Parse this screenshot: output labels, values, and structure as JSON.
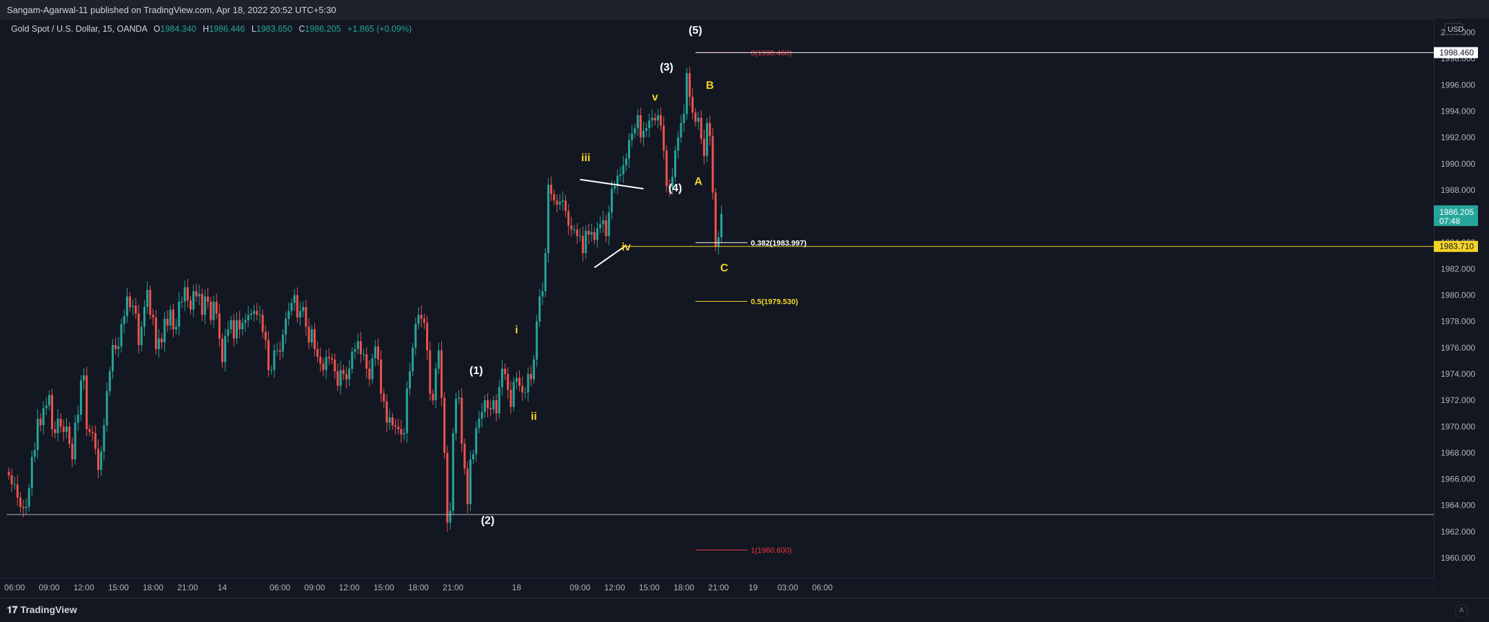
{
  "header": {
    "published": "Sangam-Agarwal-11 published on TradingView.com, Apr 18, 2022 20:52 UTC+5:30"
  },
  "legend": {
    "symbol": "Gold Spot / U.S. Dollar, 15, OANDA",
    "open_label": "O",
    "open": "1984.340",
    "high_label": "H",
    "high": "1986.446",
    "low_label": "L",
    "low": "1983.650",
    "close_label": "C",
    "close": "1986.205",
    "change": "+1.865 (+0.09%)"
  },
  "footer": {
    "brand": "TradingView",
    "auto_label": "A"
  },
  "colors": {
    "up": "#26a69a",
    "down": "#ef5350",
    "background": "#131722",
    "wave_white": "#ffffff",
    "wave_yellow": "#f5d426",
    "fib_red": "#f23645",
    "fib_yellow": "#f5d426"
  },
  "chart_data": {
    "type": "candlestick",
    "currency": "USD",
    "ylim": [
      1958.6,
      2000.2
    ],
    "y_ticks": [
      "1960.000",
      "1962.000",
      "1964.000",
      "1966.000",
      "1968.000",
      "1970.000",
      "1972.000",
      "1974.000",
      "1976.000",
      "1978.000",
      "1980.000",
      "1982.000",
      "1984.000",
      "1986.000",
      "1988.000",
      "1990.000",
      "1992.000",
      "1994.000",
      "1996.000",
      "1998.000",
      "2000.000"
    ],
    "x_ticks": [
      {
        "label": "06:00",
        "i": 2
      },
      {
        "label": "09:00",
        "i": 14
      },
      {
        "label": "12:00",
        "i": 26
      },
      {
        "label": "15:00",
        "i": 38
      },
      {
        "label": "18:00",
        "i": 50
      },
      {
        "label": "21:00",
        "i": 62
      },
      {
        "label": "14",
        "i": 74
      },
      {
        "label": "06:00",
        "i": 94
      },
      {
        "label": "09:00",
        "i": 106
      },
      {
        "label": "12:00",
        "i": 118
      },
      {
        "label": "15:00",
        "i": 130
      },
      {
        "label": "18:00",
        "i": 142
      },
      {
        "label": "21:00",
        "i": 154
      },
      {
        "label": "18",
        "i": 176
      },
      {
        "label": "09:00",
        "i": 198
      },
      {
        "label": "12:00",
        "i": 210
      },
      {
        "label": "15:00",
        "i": 222
      },
      {
        "label": "18:00",
        "i": 234
      },
      {
        "label": "21:00",
        "i": 246
      },
      {
        "label": "19",
        "i": 258
      },
      {
        "label": "03:00",
        "i": 270
      },
      {
        "label": "06:00",
        "i": 282
      }
    ],
    "candles_closes": [
      1966.3,
      1965.6,
      1965.6,
      1964.6,
      1963.9,
      1963.8,
      1963.9,
      1965.3,
      1967.7,
      1968.2,
      1970.6,
      1970.1,
      1971.4,
      1971.6,
      1972.4,
      1969.8,
      1969.5,
      1970.6,
      1970.0,
      1969.6,
      1970.0,
      1968.7,
      1967.5,
      1970.3,
      1970.9,
      1973.5,
      1973.9,
      1969.8,
      1969.6,
      1969.5,
      1968.3,
      1966.7,
      1968.1,
      1970.1,
      1972.7,
      1974.2,
      1976.2,
      1975.9,
      1976.1,
      1977.8,
      1978.4,
      1979.9,
      1979.1,
      1979.2,
      1978.6,
      1976.2,
      1977.6,
      1979.1,
      1980.4,
      1978.5,
      1978.3,
      1975.9,
      1976.7,
      1976.4,
      1978.2,
      1977.7,
      1978.9,
      1977.4,
      1977.6,
      1979.5,
      1979.5,
      1980.6,
      1979.6,
      1978.9,
      1980.3,
      1979.9,
      1980.1,
      1978.5,
      1979.9,
      1979.5,
      1978.1,
      1979.5,
      1978.6,
      1976.7,
      1974.9,
      1976.9,
      1977.4,
      1978.1,
      1976.7,
      1978.1,
      1977.4,
      1977.9,
      1978.1,
      1978.5,
      1978.6,
      1978.8,
      1978.5,
      1978.5,
      1977.2,
      1976.6,
      1974.3,
      1974.3,
      1975.8,
      1975.8,
      1975.7,
      1977.0,
      1978.2,
      1978.8,
      1979.4,
      1980.0,
      1978.3,
      1978.8,
      1979.1,
      1977.6,
      1976.4,
      1977.4,
      1975.9,
      1975.3,
      1974.8,
      1974.3,
      1975.3,
      1975.2,
      1975.1,
      1974.2,
      1973.1,
      1974.3,
      1974.0,
      1973.6,
      1974.4,
      1975.7,
      1975.9,
      1976.5,
      1975.5,
      1975.5,
      1974.4,
      1973.6,
      1975.2,
      1976.1,
      1975.1,
      1972.5,
      1971.9,
      1970.3,
      1970.7,
      1970.1,
      1970.0,
      1969.8,
      1969.4,
      1969.5,
      1972.9,
      1974.2,
      1976.0,
      1977.8,
      1978.5,
      1978.2,
      1977.9,
      1975.8,
      1972.5,
      1972.0,
      1974.4,
      1975.8,
      1972.2,
      1968.0,
      1962.7,
      1963.6,
      1969.5,
      1972.1,
      1972.2,
      1968.7,
      1966.8,
      1964.1,
      1967.5,
      1967.9,
      1969.9,
      1970.6,
      1971.1,
      1972.0,
      1971.4,
      1971.3,
      1972.0,
      1971.0,
      1973.0,
      1974.4,
      1974.0,
      1972.8,
      1971.5,
      1973.4,
      1973.7,
      1973.1,
      1972.6,
      1972.6,
      1974.0,
      1973.6,
      1975.1,
      1978.0,
      1979.9,
      1980.3,
      1983.2,
      1988.4,
      1987.7,
      1987.2,
      1986.9,
      1987.1,
      1987.2,
      1986.4,
      1985.3,
      1985.0,
      1985.0,
      1984.5,
      1984.5,
      1983.2,
      1984.9,
      1984.6,
      1984.8,
      1984.2,
      1985.1,
      1985.4,
      1985.7,
      1984.5,
      1986.3,
      1988.1,
      1988.3,
      1989.1,
      1989.2,
      1989.9,
      1990.4,
      1991.8,
      1992.3,
      1992.7,
      1993.7,
      1992.0,
      1992.5,
      1992.7,
      1993.3,
      1993.5,
      1993.3,
      1993.7,
      1992.9,
      1991.0,
      1988.3,
      1988.2,
      1989.0,
      1991.0,
      1992.0,
      1993.1,
      1993.8,
      1996.9,
      1995.1,
      1993.9,
      1993.2,
      1993.5,
      1991.9,
      1990.6,
      1993.1,
      1992.1,
      1987.8,
      1983.7,
      1984.4,
      1986.2
    ],
    "wave_labels": [
      {
        "text": "(1)",
        "color": "white",
        "i": 162,
        "y": 1974.0
      },
      {
        "text": "(2)",
        "color": "white",
        "i": 166,
        "y": 1962.6
      },
      {
        "text": "(3)",
        "color": "white",
        "i": 228,
        "y": 1997.1
      },
      {
        "text": "(4)",
        "color": "white",
        "i": 231,
        "y": 1987.9
      },
      {
        "text": "(5)",
        "color": "white",
        "i": 238,
        "y": 1999.9
      },
      {
        "text": "A",
        "color": "yellow",
        "i": 239,
        "y": 1988.4
      },
      {
        "text": "B",
        "color": "yellow",
        "i": 243,
        "y": 1995.7
      },
      {
        "text": "C",
        "color": "yellow",
        "i": 248,
        "y": 1981.8
      },
      {
        "text": "i",
        "color": "yellow",
        "i": 176,
        "y": 1977.1
      },
      {
        "text": "ii",
        "color": "yellow",
        "i": 182,
        "y": 1970.5
      },
      {
        "text": "iii",
        "color": "yellow",
        "i": 200,
        "y": 1990.2
      },
      {
        "text": "iv",
        "color": "yellow",
        "i": 214,
        "y": 1983.4
      },
      {
        "text": "v",
        "color": "yellow",
        "i": 224,
        "y": 1994.8
      }
    ],
    "fib_levels": [
      {
        "label": "0(1998.460)",
        "value": 1998.46,
        "color": "red"
      },
      {
        "label": "0.382(1983.997)",
        "value": 1983.997,
        "color": "white"
      },
      {
        "label": "0.5(1979.530)",
        "value": 1979.53,
        "color": "yellow"
      },
      {
        "label": "1(1960.600)",
        "value": 1960.6,
        "color": "red"
      }
    ],
    "horizontal_lines": [
      {
        "value": 1963.3,
        "color": "white"
      },
      {
        "value": 1983.71,
        "color": "yellow"
      }
    ],
    "price_tags": [
      {
        "text": "1998.460",
        "value": 1998.46,
        "style": "white"
      },
      {
        "text": "1986.205",
        "sub": "07:48",
        "value": 1986.205,
        "style": "green"
      },
      {
        "text": "1983.710",
        "value": 1983.71,
        "style": "yellow"
      }
    ]
  }
}
